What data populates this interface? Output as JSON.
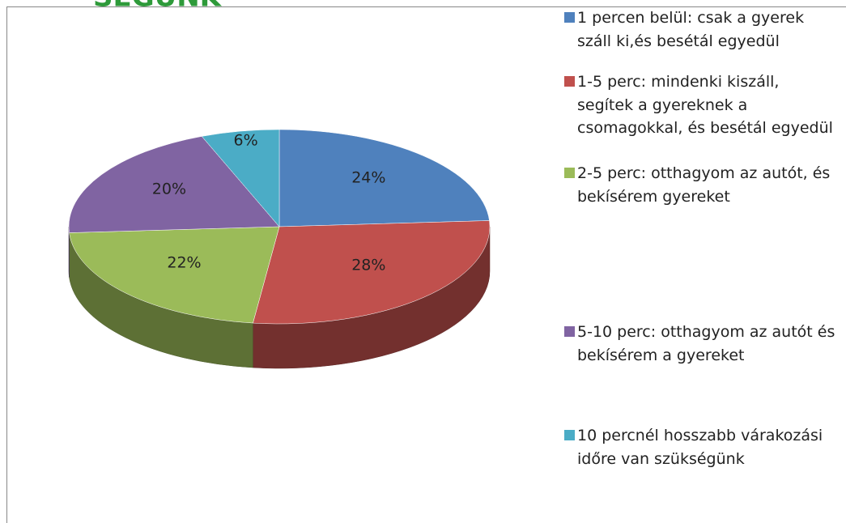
{
  "header": {
    "title": "SÉGÜNK"
  },
  "chart_data": {
    "type": "pie",
    "categories": [
      "1 percen belül: csak a gyerek száll ki,és besétál egyedül",
      "1-5 perc: mindenki kiszáll, segítek a gyereknek a csomagokkal, és besétál egyedül",
      "2-5 perc: otthagyom az autót, és bekísérem gyereket",
      "5-10 perc: otthagyom az autót és bekísérem a gyereket",
      "10 percnél hosszabb várakozási időre van szükségünk"
    ],
    "values": [
      24,
      28,
      22,
      20,
      6
    ],
    "value_labels": [
      "24%",
      "28%",
      "22%",
      "20%",
      "6%"
    ],
    "colors": [
      "#4f81bd",
      "#c0504d",
      "#9bbb59",
      "#8064a2",
      "#4bacc6"
    ],
    "legend": "right"
  }
}
